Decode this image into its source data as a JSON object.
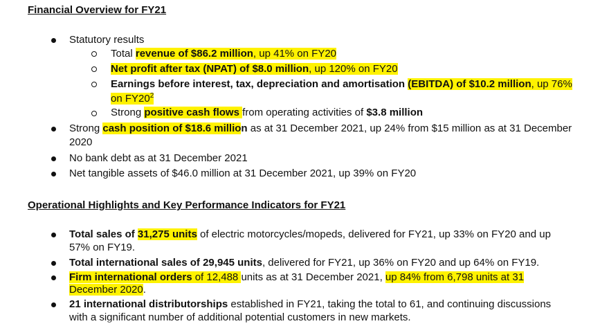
{
  "section1": {
    "heading": "Financial Overview for FY21"
  },
  "s1": {
    "statutory": "Statutory results",
    "rev": {
      "pre": "Total ",
      "hl": "revenue of $86.2 million",
      "post": ", up 41% on FY20"
    },
    "npat": {
      "hl": "Net profit after tax (NPAT) of $8.0 million",
      "post": ", up 120% on FY20"
    },
    "ebitda": {
      "pre": "Earnings before interest, tax, depreciation and amortisation ",
      "hl": "(EBITDA) of $10.2 million",
      "post": ", up 76%",
      "line2": "on FY20",
      "sup": "2"
    },
    "cash": {
      "pre": "Strong ",
      "hl": "positive cash flows ",
      "mid": "from operating activities of ",
      "amount": "$3.8 million"
    },
    "cashpos": {
      "pre": "Strong ",
      "hl": "cash position of $18.6 millio",
      "tail": "n",
      "post": " as at 31 December 2021, up 24% from $15 million as at 31 December",
      "line2": "2020"
    },
    "debt": "No bank debt as at 31 December 2021",
    "nta": "Net tangible assets of $46.0 million at 31 December 2021, up 39% on FY20"
  },
  "section2": {
    "heading": "Operational Highlights and Key Performance Indicators for FY21"
  },
  "s2": {
    "sales": {
      "bold": "Total sales of ",
      "hl": "31,275 units",
      "post": " of electric motorcycles/mopeds, delivered for FY21, up 33% on FY20 and up",
      "line2": "57% on FY19."
    },
    "intl": {
      "bold": "Total international sales of 29,945 units",
      "post": ", delivered for FY21, up 36% on FY20 and up 64% on FY19."
    },
    "orders": {
      "hl1": "Firm international orders",
      "hl2": " of 12,488 ",
      "mid": "units as at 31 December 2021, ",
      "hl3": "up 84% from 6,798 units at 31",
      "line2": "December 2020",
      "line2end": "."
    },
    "dist": {
      "bold": "21 international distributorships",
      "post": " established in FY21, taking the total to 61, and continuing discussions",
      "line2": "with a significant number of additional potential customers in new markets."
    }
  }
}
